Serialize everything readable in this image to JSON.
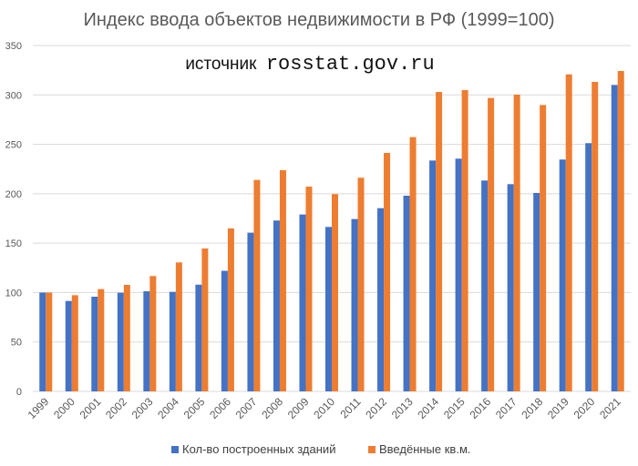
{
  "chart_data": {
    "type": "bar",
    "title": "Индекс ввода объектов недвижимости в РФ (1999=100)",
    "annotation_prefix": "источник",
    "annotation_source": "rosstat.gov.ru",
    "xlabel": "",
    "ylabel": "",
    "ylim": [
      0,
      350
    ],
    "yticks": [
      0,
      50,
      100,
      150,
      200,
      250,
      300,
      350
    ],
    "grid": true,
    "legend_position": "bottom",
    "categories": [
      "1999",
      "2000",
      "2001",
      "2002",
      "2003",
      "2004",
      "2005",
      "2006",
      "2007",
      "2008",
      "2009",
      "2010",
      "2011",
      "2012",
      "2013",
      "2014",
      "2015",
      "2016",
      "2017",
      "2018",
      "2019",
      "2020",
      "2021"
    ],
    "series": [
      {
        "name": "Кол-во построенных зданий",
        "color": "#4472c4",
        "values": [
          100,
          91.5,
          95.8,
          99.8,
          101.3,
          100.7,
          108,
          122,
          160.6,
          172.9,
          179,
          166.4,
          174.4,
          185.4,
          198,
          233.6,
          235.5,
          213.4,
          209.7,
          200.8,
          234.6,
          251.2,
          310.1
        ]
      },
      {
        "name": "Введённые кв.м.",
        "color": "#ed7d31",
        "values": [
          100,
          97.3,
          103.5,
          107.8,
          116.7,
          130.5,
          144.6,
          164.9,
          214,
          223.8,
          207.2,
          199.6,
          216.2,
          241.3,
          257.3,
          303,
          304.9,
          296.9,
          300.3,
          289.8,
          320.8,
          313.2,
          324.2
        ]
      }
    ]
  }
}
